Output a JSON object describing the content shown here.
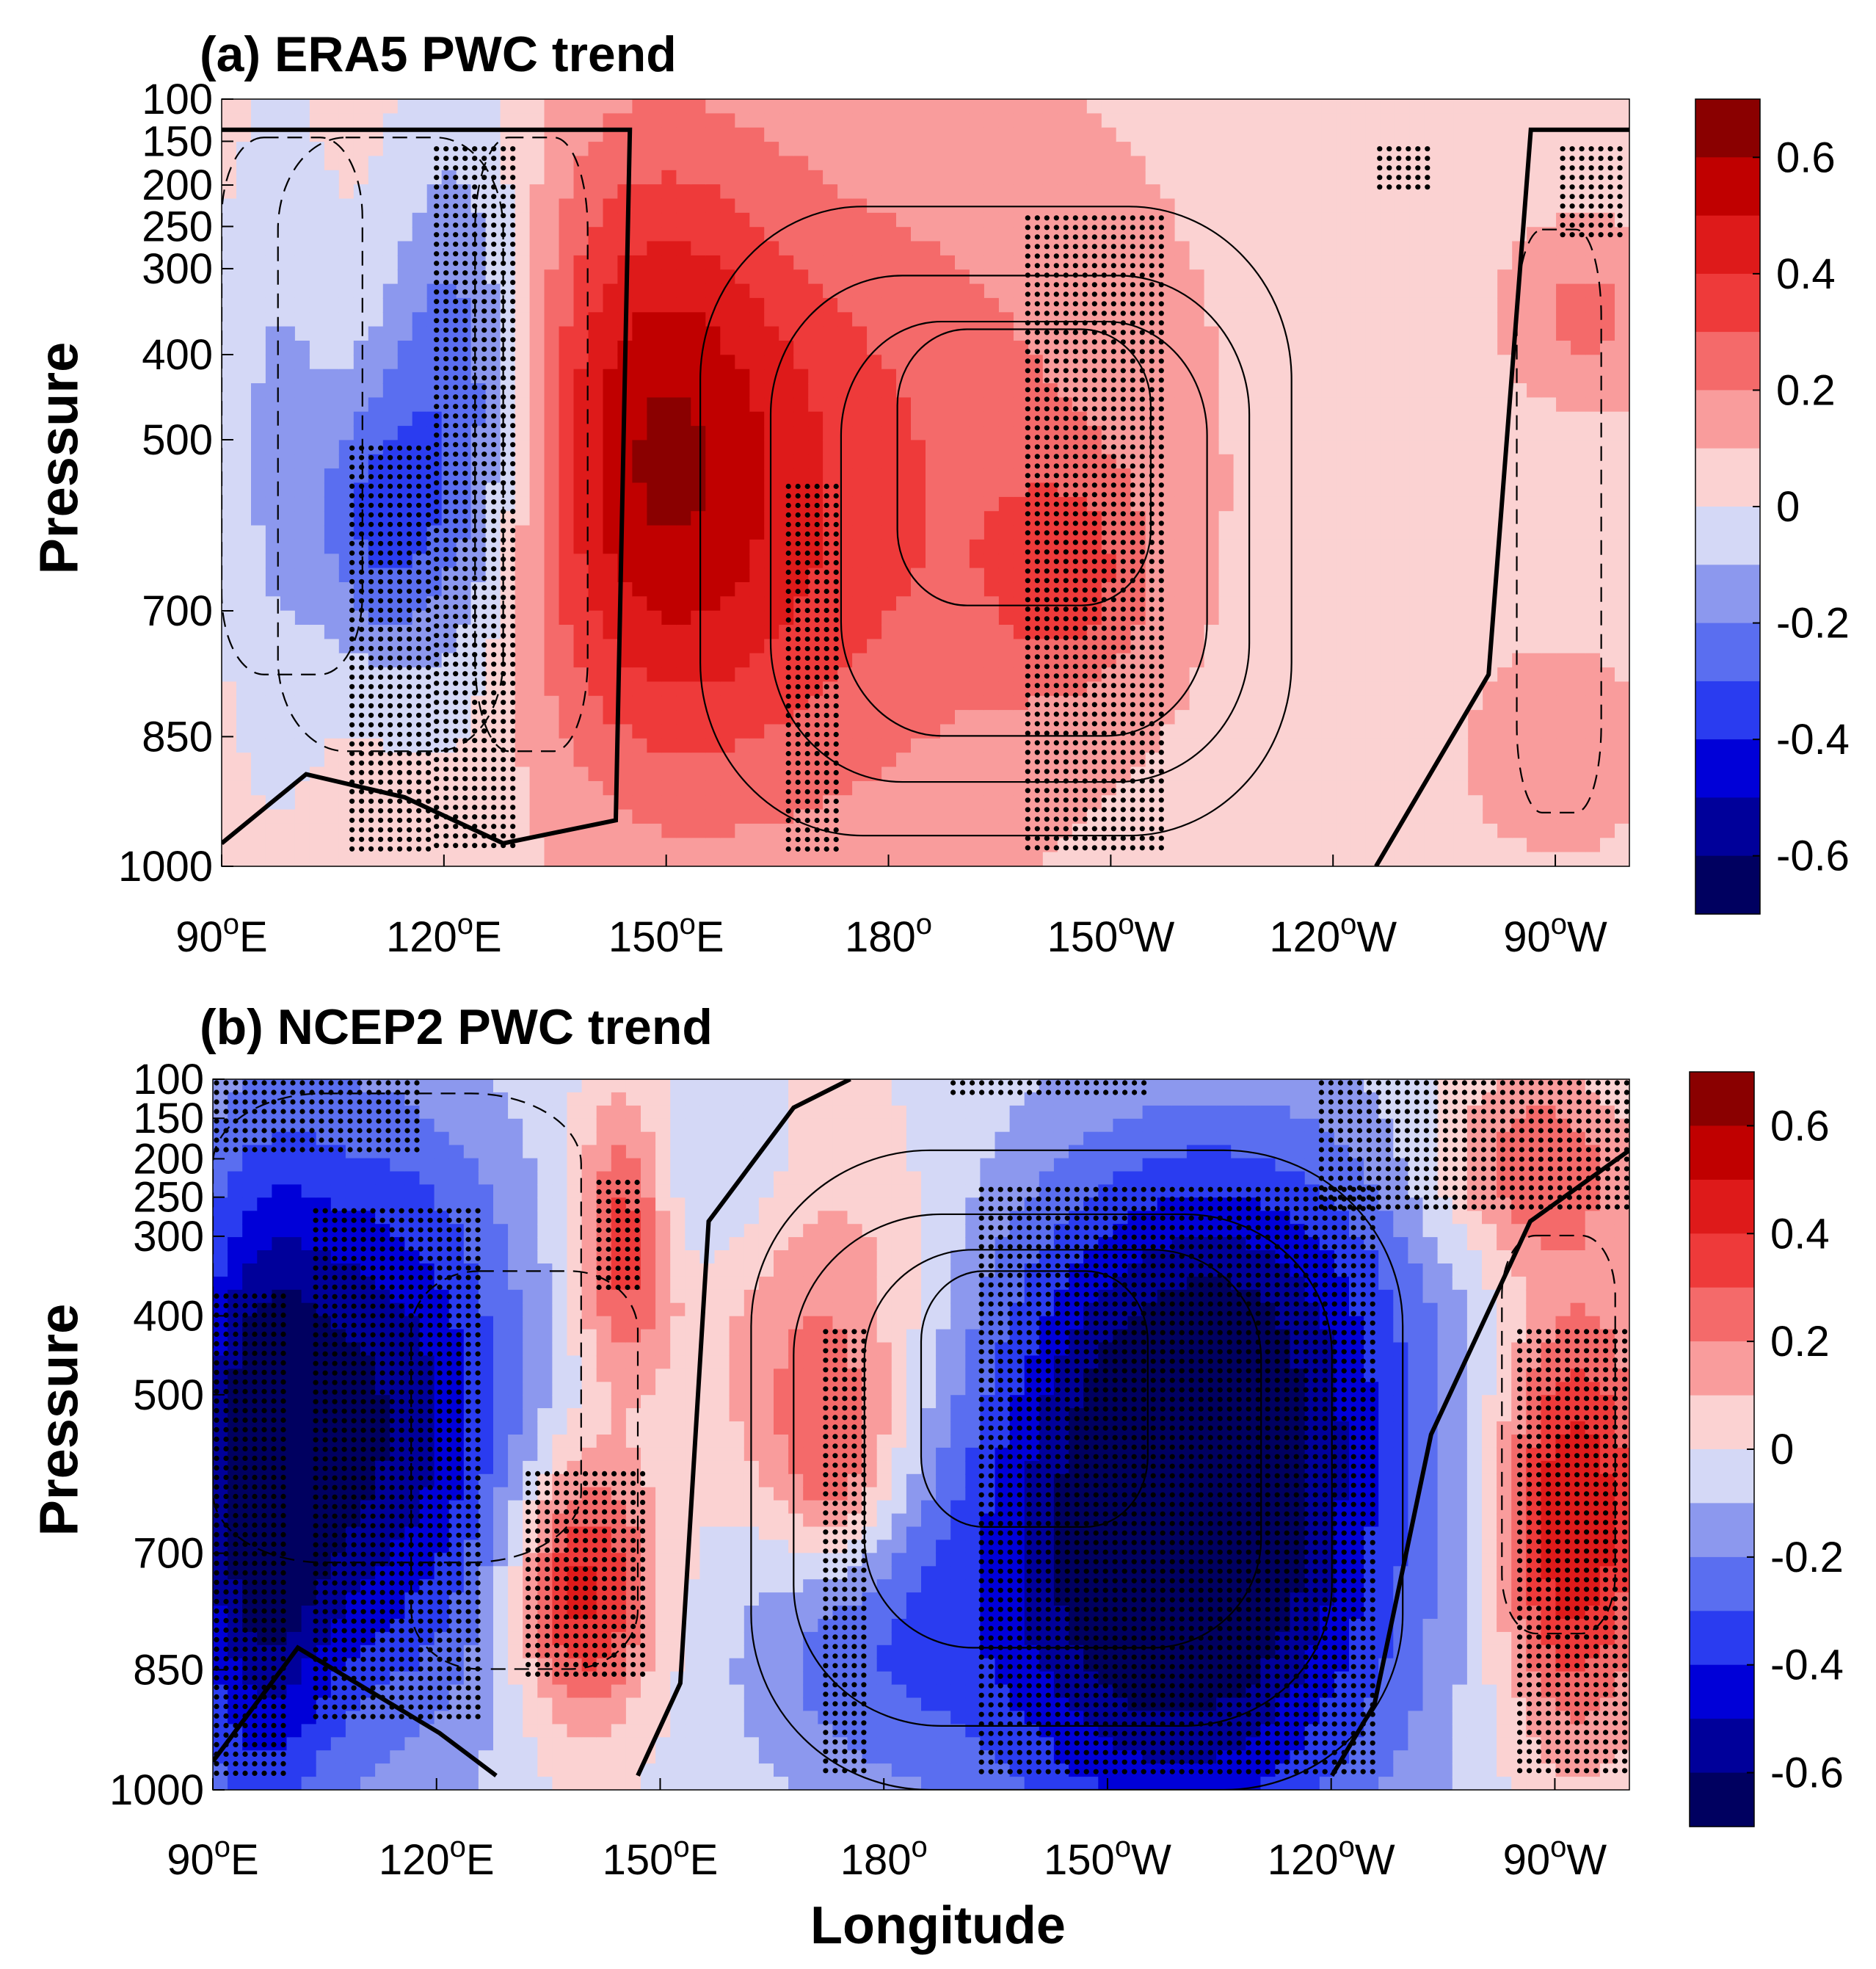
{
  "chart_data": [
    {
      "type": "heatmap",
      "title": "(a) ERA5 PWC trend",
      "xlabel": "",
      "ylabel": "Pressure",
      "x_ticks": [
        "90",
        "120",
        "150",
        "180",
        "150",
        "120",
        "90"
      ],
      "x_tick_suffix": [
        "E",
        "E",
        "E",
        "",
        "W",
        "W",
        "W"
      ],
      "x_tick_values": [
        90,
        120,
        150,
        180,
        210,
        240,
        270
      ],
      "xlim": [
        90,
        280
      ],
      "y_ticks": [
        "100",
        "150",
        "200",
        "250",
        "300",
        "400",
        "500",
        "700",
        "850",
        "1000"
      ],
      "ylim": [
        1000,
        100
      ],
      "colorbar": {
        "ticks": [
          "0.6",
          "0.4",
          "0.2",
          "0",
          "-0.2",
          "-0.4",
          "-0.6"
        ],
        "range": [
          -0.7,
          0.7
        ],
        "levels": 14
      },
      "stippling": "significant trends",
      "contours": "climatological stream function (solid positive, dashed negative, bold zero line)"
    },
    {
      "type": "heatmap",
      "title": "(b) NCEP2 PWC trend",
      "xlabel": "Longitude",
      "ylabel": "Pressure",
      "x_ticks": [
        "90",
        "120",
        "150",
        "180",
        "150",
        "120",
        "90"
      ],
      "x_tick_suffix": [
        "E",
        "E",
        "E",
        "",
        "W",
        "W",
        "W"
      ],
      "x_tick_values": [
        90,
        120,
        150,
        180,
        210,
        240,
        270
      ],
      "xlim": [
        90,
        280
      ],
      "y_ticks": [
        "100",
        "150",
        "200",
        "250",
        "300",
        "400",
        "500",
        "700",
        "850",
        "1000"
      ],
      "ylim": [
        1000,
        100
      ],
      "colorbar": {
        "ticks": [
          "0.6",
          "0.4",
          "0.2",
          "0",
          "-0.2",
          "-0.4",
          "-0.6"
        ],
        "range": [
          -0.7,
          0.7
        ],
        "levels": 14
      },
      "stippling": "significant trends",
      "contours": "climatological stream function (solid positive, dashed negative, bold zero line)"
    }
  ],
  "colors": {
    "palette": [
      "#000060",
      "#00009a",
      "#0000d8",
      "#2a3cf0",
      "#5a6ef0",
      "#8c98ee",
      "#d4d8f6",
      "#fbd2d2",
      "#f99c9c",
      "#f46a6a",
      "#ee3a3a",
      "#de1a1a",
      "#c00000",
      "#8a0000"
    ],
    "background": "#ffffff",
    "axis": "#000000"
  }
}
